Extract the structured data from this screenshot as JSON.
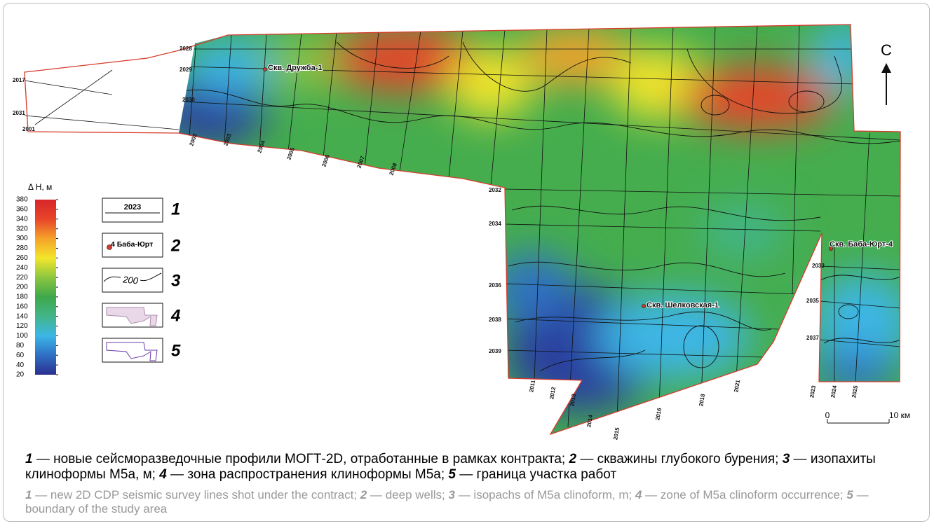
{
  "map": {
    "north": "C",
    "wells": [
      "Скв. Дружба-1",
      "Скв. Шелковская-1",
      "Скв. Баба-Юрт-4"
    ],
    "profiles": [
      "2017",
      "2031",
      "2001",
      "2028",
      "2029",
      "2030",
      "2002",
      "2003",
      "2004",
      "2005",
      "2006",
      "2007",
      "2008",
      "2032",
      "2034",
      "2036",
      "2038",
      "2039",
      "2011",
      "2012",
      "2013",
      "2014",
      "2015",
      "2016",
      "2018",
      "2021",
      "2033",
      "2035",
      "2037",
      "2023",
      "2024",
      "2025"
    ],
    "scale_bar": {
      "start": "0",
      "end": "10 км"
    }
  },
  "color_scale": {
    "label": "Δ H, м",
    "range": [
      20,
      380
    ],
    "ticks": [
      20,
      40,
      60,
      80,
      100,
      120,
      140,
      160,
      180,
      200,
      220,
      240,
      260,
      280,
      300,
      320,
      340,
      360,
      380
    ],
    "colors": [
      "#2b2f8f",
      "#2f6fc4",
      "#3cb6e6",
      "#43b58a",
      "#3ea84a",
      "#8cc63f",
      "#f3e62a",
      "#f5a22a",
      "#e8452a",
      "#d7262a"
    ]
  },
  "legend": [
    {
      "number": "1",
      "sample": "2023"
    },
    {
      "number": "2",
      "sample": "4 Баба-Юрт"
    },
    {
      "number": "3",
      "sample": "200"
    },
    {
      "number": "4"
    },
    {
      "number": "5"
    }
  ],
  "caption": {
    "ru": [
      {
        "number": "1",
        "text": " — новые сейсморазведочные профили МОГТ-2D, отработанные в рамках контракта; "
      },
      {
        "number": "2",
        "text": " — скважины глубокого бурения; "
      },
      {
        "number": "3",
        "text": " — изопахиты клиноформы М5а, м; "
      },
      {
        "number": "4",
        "text": " — зона распространения клиноформы М5а; "
      },
      {
        "number": "5",
        "text": " — граница участка работ"
      }
    ],
    "en": [
      {
        "number": "1",
        "text": " — new 2D CDP seismic survey lines shot under the contract; "
      },
      {
        "number": "2",
        "text": " — deep wells; "
      },
      {
        "number": "3",
        "text": " — isopachs of M5a clinoform, m; "
      },
      {
        "number": "4",
        "text": " — zone of M5a clinoform occurrence; "
      },
      {
        "number": "5",
        "text": " — boundary of the study area"
      }
    ]
  }
}
